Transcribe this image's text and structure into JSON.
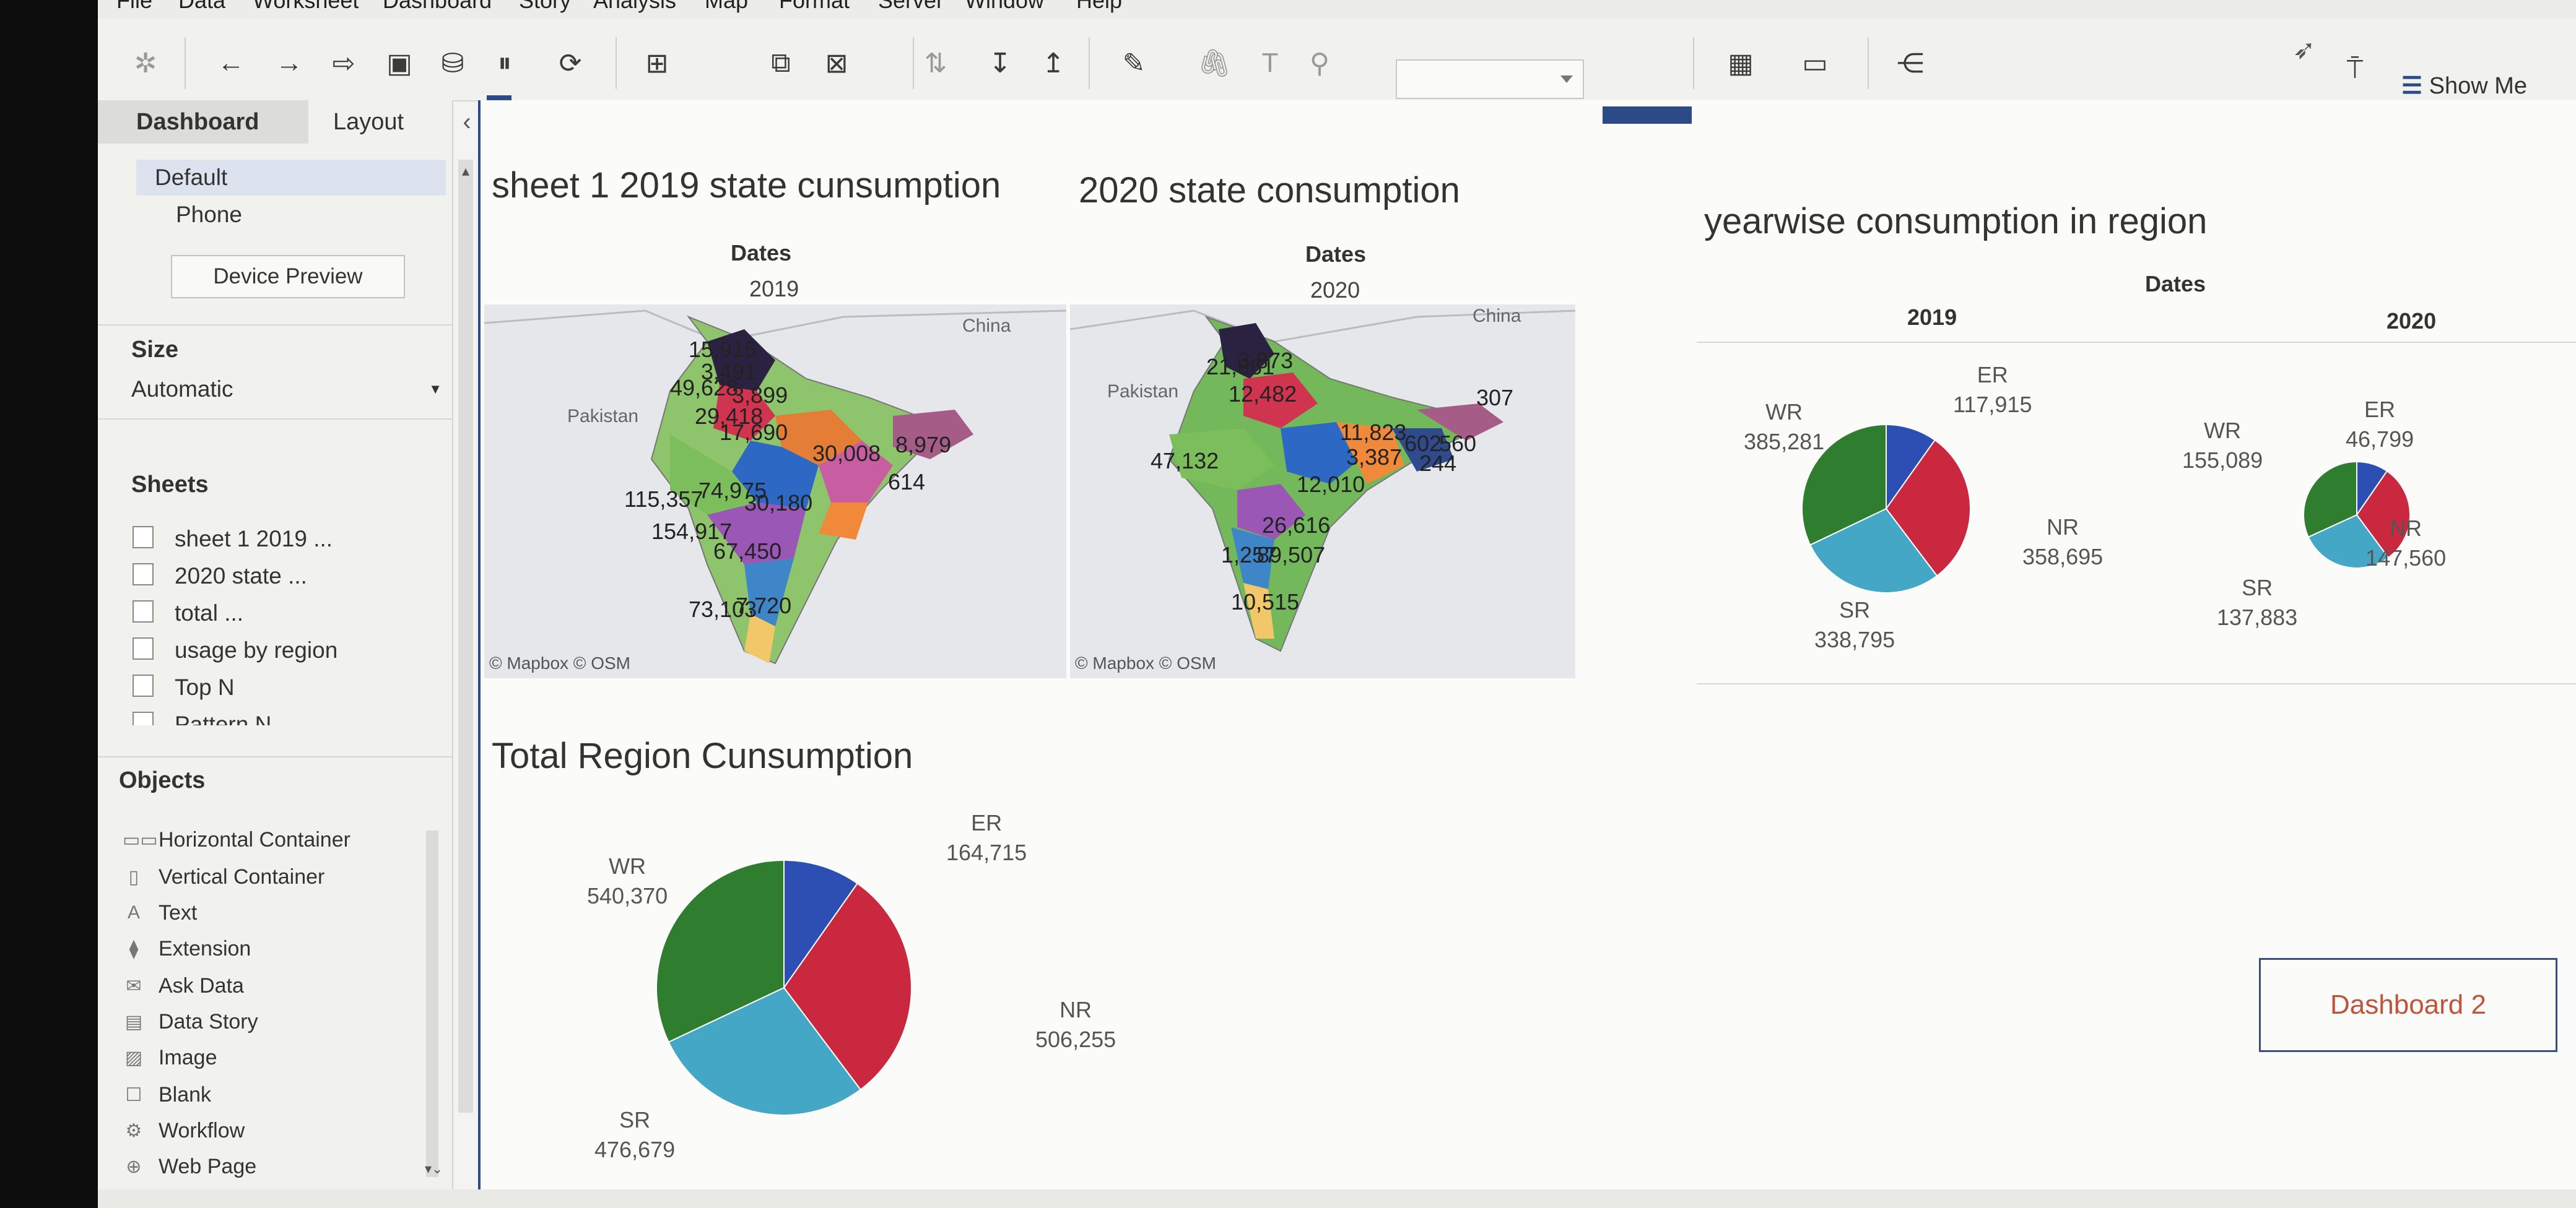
{
  "menu": [
    "File",
    "Data",
    "Worksheet",
    "Dashboard",
    "Story",
    "Analysis",
    "Map",
    "Format",
    "Server",
    "Window",
    "Help"
  ],
  "toolbar": {
    "icons": [
      "tableau-logo-icon",
      "undo-icon",
      "redo-icon",
      "replay-icon",
      "save-icon",
      "new-datasource-icon",
      "pause-icon",
      "refresh-icon",
      "new-worksheet-icon",
      "duplicate-icon",
      "clear-sheet-icon",
      "swap-icon",
      "sort-asc-icon",
      "sort-desc-icon",
      "highlight-icon",
      "group-icon",
      "label-icon",
      "pin-icon",
      "view-size-icon",
      "presentation-icon",
      "share-icon"
    ],
    "show_me": "Show Me"
  },
  "left_panel": {
    "tabs": [
      "Dashboard",
      "Layout"
    ],
    "devices": [
      "Default",
      "Phone"
    ],
    "device_preview": "Device Preview",
    "size_title": "Size",
    "size_value": "Automatic",
    "sheets_title": "Sheets",
    "sheets": [
      "sheet 1 2019 ...",
      "2020 state ...",
      "total ...",
      "usage by region",
      "Top N",
      "Pattern N"
    ],
    "objects_title": "Objects",
    "objects": [
      "Horizontal Container",
      "Vertical Container",
      "Text",
      "Extension",
      "Ask Data",
      "Data Story",
      "Image",
      "Blank",
      "Workflow",
      "Web Page"
    ]
  },
  "dashboard": {
    "sheet1": {
      "title": "sheet 1 2019 state cunsumption",
      "header": "Dates",
      "year": "2019",
      "credit": "© Mapbox © OSM",
      "labels": [
        "Pakistan",
        "China"
      ]
    },
    "sheet2": {
      "title": "2020 state consumption",
      "header": "Dates",
      "year": "2020",
      "credit": "© Mapbox © OSM",
      "labels": [
        "Pakistan",
        "China"
      ]
    },
    "yearwise": {
      "title": "yearwise consumption in region",
      "header": "Dates",
      "years": [
        "2019",
        "2020"
      ]
    },
    "total": {
      "title": "Total Region Cunsumption"
    },
    "button": "Dashboard 2"
  },
  "map_numbers_2019": [
    "15,915",
    "3,491",
    "49,628",
    "3,899",
    "29,418",
    "17,690",
    "30,008",
    "8,979",
    "614",
    "115,357",
    "74,975",
    "30,180",
    "154,917",
    "67,450",
    "73,103",
    "7,720"
  ],
  "map_numbers_2020": [
    "21,861",
    "3,873",
    "12,482",
    "307",
    "47,132",
    "11,823",
    "3,387",
    "602",
    "560",
    "244",
    "12,010",
    "26,616",
    "1,257",
    "89,507",
    "10,515"
  ],
  "colors": {
    "ER": "#2d4eb3",
    "NR": "#c9283f",
    "SR": "#44a7c6",
    "WR": "#2f7d2f",
    "small": "#e08a22",
    "accent": "#2c4a86"
  },
  "chart_data": [
    {
      "type": "pie",
      "title": "2019",
      "slices": [
        {
          "label": "ER",
          "value": 117915
        },
        {
          "label": "NR",
          "value": 358695
        },
        {
          "label": "SR",
          "value": 338795
        },
        {
          "label": "WR",
          "value": 385281
        }
      ]
    },
    {
      "type": "pie",
      "title": "2020",
      "slices": [
        {
          "label": "ER",
          "value": 46799
        },
        {
          "label": "NR",
          "value": 147560
        },
        {
          "label": "SR",
          "value": 137883
        },
        {
          "label": "WR",
          "value": 155089
        }
      ]
    },
    {
      "type": "pie",
      "title": "Total Region Cunsumption",
      "slices": [
        {
          "label": "ER",
          "value": 164715
        },
        {
          "label": "NR",
          "value": 506255
        },
        {
          "label": "SR",
          "value": 476679
        },
        {
          "label": "WR",
          "value": 540370
        }
      ]
    }
  ],
  "pie_labels": {
    "p2019": {
      "ER": "117,915",
      "NR": "358,695",
      "SR": "338,795",
      "WR": "385,281"
    },
    "p2020": {
      "ER": "46,799",
      "NR": "147,560",
      "SR": "137,883",
      "WR": "155,089"
    },
    "total": {
      "ER": "164,715",
      "NR": "506,255",
      "SR": "476,679",
      "WR": "540,370"
    }
  }
}
